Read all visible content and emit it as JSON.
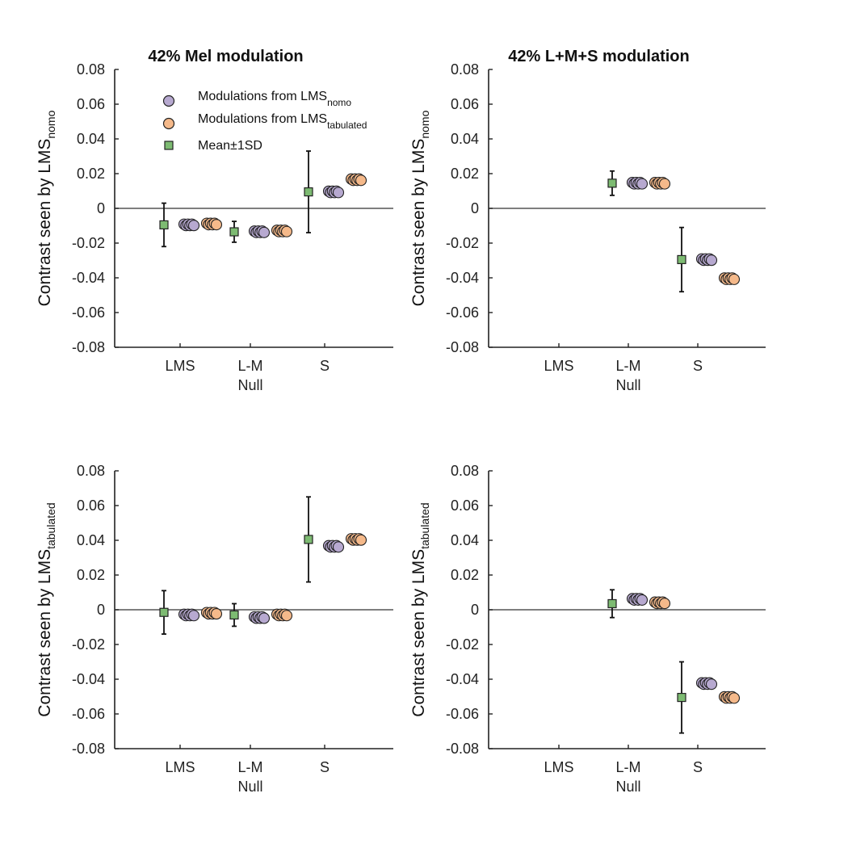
{
  "colors": {
    "nomo_fill": "#b7a9d0",
    "tabulated_fill": "#f5b98a",
    "mean_fill": "#7dbb72",
    "marker_edge": "#222222"
  },
  "legend": {
    "nomo_main": "Modulations from LMS",
    "nomo_sub": "nomo",
    "tabulated_main": "Modulations from LMS",
    "tabulated_sub": "tabulated",
    "mean_main": "Mean",
    "mean_pm": "±",
    "mean_rest": "1SD"
  },
  "chart_data": [
    {
      "type": "scatter",
      "panel": "top-left",
      "title": "42% Mel modulation",
      "ylabel_main": "Contrast seen by LMS",
      "ylabel_sub": "nomo",
      "categories": [
        "LMS",
        "L-M",
        "S"
      ],
      "xlabel": "Null",
      "ylim": [
        -0.08,
        0.08
      ],
      "yticks": [
        "0.08",
        "0.06",
        "0.04",
        "0.02",
        "0",
        "-0.02",
        "-0.04",
        "-0.06",
        "-0.08"
      ],
      "mean": [
        -0.0095,
        -0.0135,
        0.0095
      ],
      "sd": [
        0.0125,
        0.006,
        0.0235
      ],
      "nomo": [
        -0.0095,
        -0.0135,
        0.0095
      ],
      "tabulated": [
        -0.009,
        -0.013,
        0.0165
      ]
    },
    {
      "type": "scatter",
      "panel": "top-right",
      "title": "42% L+M+S modulation",
      "ylabel_main": "Contrast seen by LMS",
      "ylabel_sub": "nomo",
      "categories": [
        "LMS",
        "L-M",
        "S"
      ],
      "xlabel": "Null",
      "ylim": [
        -0.08,
        0.08
      ],
      "yticks": [
        "0.08",
        "0.06",
        "0.04",
        "0.02",
        "0",
        "-0.02",
        "-0.04",
        "-0.06",
        "-0.08"
      ],
      "mean": [
        null,
        0.0145,
        -0.0295
      ],
      "sd": [
        null,
        0.007,
        0.0185
      ],
      "nomo": [
        null,
        0.0145,
        -0.0295
      ],
      "tabulated": [
        null,
        0.0145,
        -0.0405
      ]
    },
    {
      "type": "scatter",
      "panel": "bottom-left",
      "title": "",
      "ylabel_main": "Contrast seen by LMS",
      "ylabel_sub": "tabulated",
      "categories": [
        "LMS",
        "L-M",
        "S"
      ],
      "xlabel": "Null",
      "ylim": [
        -0.08,
        0.08
      ],
      "yticks": [
        "0.08",
        "0.06",
        "0.04",
        "0.02",
        "0",
        "-0.02",
        "-0.04",
        "-0.06",
        "-0.08"
      ],
      "mean": [
        -0.0015,
        -0.003,
        0.0405
      ],
      "sd": [
        0.0125,
        0.0065,
        0.0245
      ],
      "nomo": [
        -0.003,
        -0.0045,
        0.0365
      ],
      "tabulated": [
        -0.002,
        -0.003,
        0.0405
      ]
    },
    {
      "type": "scatter",
      "panel": "bottom-right",
      "title": "",
      "ylabel_main": "Contrast seen by LMS",
      "ylabel_sub": "tabulated",
      "categories": [
        "LMS",
        "L-M",
        "S"
      ],
      "xlabel": "Null",
      "ylim": [
        -0.08,
        0.08
      ],
      "yticks": [
        "0.08",
        "0.06",
        "0.04",
        "0.02",
        "0",
        "-0.02",
        "-0.04",
        "-0.06",
        "-0.08"
      ],
      "mean": [
        null,
        0.0035,
        -0.0505
      ],
      "sd": [
        null,
        0.008,
        0.0205
      ],
      "nomo": [
        null,
        0.006,
        -0.0425
      ],
      "tabulated": [
        null,
        0.004,
        -0.0505
      ]
    }
  ]
}
